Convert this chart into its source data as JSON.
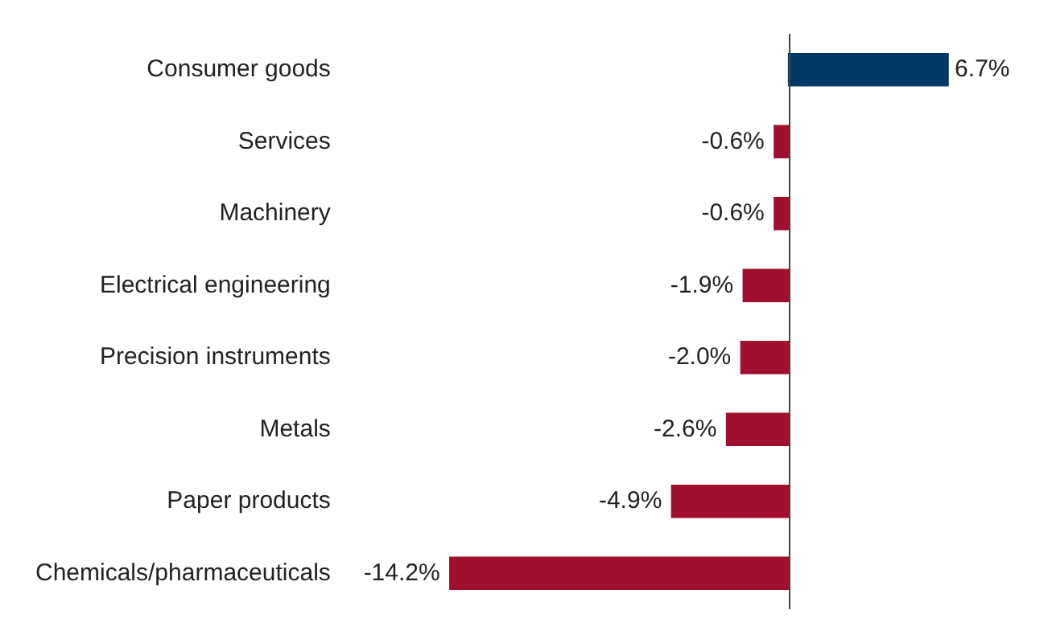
{
  "chart_data": {
    "type": "bar",
    "orientation": "horizontal",
    "categories": [
      "Consumer goods",
      "Services",
      "Machinery",
      "Electrical engineering",
      "Precision instruments",
      "Metals",
      "Paper products",
      "Chemicals/pharmaceuticals"
    ],
    "values": [
      6.7,
      -0.6,
      -0.6,
      -1.9,
      -2.0,
      -2.6,
      -4.9,
      -14.2
    ],
    "value_labels": [
      "6.7%",
      "-0.6%",
      "-0.6%",
      "-1.9%",
      "-2.0%",
      "-2.6%",
      "-4.9%",
      "-14.2%"
    ],
    "colors": [
      "#003865",
      "#a0102e",
      "#a0102e",
      "#a0102e",
      "#a0102e",
      "#a0102e",
      "#a0102e",
      "#a0102e"
    ],
    "legend": false
  }
}
